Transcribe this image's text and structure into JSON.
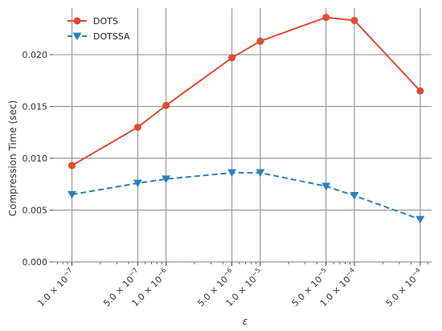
{
  "chart_data": {
    "type": "line",
    "xscale": "log",
    "ylabel": "Compression Time (sec)",
    "xlabel": "ε",
    "xlim": [
      6.3e-08,
      0.00066
    ],
    "ylim": [
      0.0,
      0.0245
    ],
    "grid": true,
    "legend_position": "top-left",
    "x": [
      1e-07,
      5e-07,
      1e-06,
      5e-06,
      1e-05,
      5e-05,
      0.0001,
      0.0005
    ],
    "x_tick_labels": [
      {
        "value": 1e-07,
        "mantissa": "1.0",
        "exp": "−7"
      },
      {
        "value": 5e-07,
        "mantissa": "5.0",
        "exp": "−7"
      },
      {
        "value": 1e-06,
        "mantissa": "1.0",
        "exp": "−6"
      },
      {
        "value": 5e-06,
        "mantissa": "5.0",
        "exp": "−6"
      },
      {
        "value": 1e-05,
        "mantissa": "1.0",
        "exp": "−5"
      },
      {
        "value": 5e-05,
        "mantissa": "5.0",
        "exp": "−5"
      },
      {
        "value": 0.0001,
        "mantissa": "1.0",
        "exp": "−4"
      },
      {
        "value": 0.0005,
        "mantissa": "5.0",
        "exp": "−4"
      }
    ],
    "y_ticks": [
      0.0,
      0.005,
      0.01,
      0.015,
      0.02
    ],
    "y_tick_labels": [
      "0.000",
      "0.005",
      "0.010",
      "0.015",
      "0.020"
    ],
    "series": [
      {
        "name": "DOTS",
        "color": "#e34a33",
        "marker": "circle",
        "line_style": "solid",
        "values": [
          0.0093,
          0.013,
          0.0151,
          0.0197,
          0.0213,
          0.0236,
          0.0233,
          0.0165
        ]
      },
      {
        "name": "DOTSSA",
        "color": "#2b83ba",
        "marker": "triangle-down",
        "line_style": "dashed",
        "values": [
          0.0065,
          0.0076,
          0.008,
          0.0086,
          0.0086,
          0.0073,
          0.0064,
          0.0041
        ]
      }
    ]
  }
}
